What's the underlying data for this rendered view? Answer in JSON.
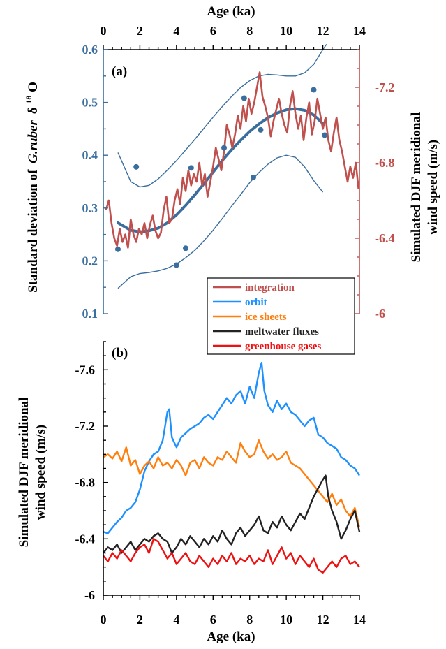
{
  "colors": {
    "sd_blue": "#3a6e9e",
    "integration": "#c0504d",
    "orbit": "#1e90ff",
    "ice_sheets": "#ff7f0e",
    "meltwater": "#222222",
    "greenhouse": "#ee1111",
    "axis": "#000000"
  },
  "chart_data": [
    {
      "panel_label": "(a)",
      "type": "line",
      "top_xlabel": "Age (ka)",
      "xlim": [
        0,
        14
      ],
      "xticks": [
        0,
        2,
        4,
        6,
        8,
        10,
        12,
        14
      ],
      "left_ylabel_plain": "Standard deviation of",
      "left_ylabel_italic": "G.ruber",
      "left_ylabel_delta": "δ",
      "left_ylabel_sup": "18",
      "left_ylabel_end": "O",
      "left_ylim": [
        0.1,
        0.6
      ],
      "left_yticks": [
        "0.6",
        "0.5",
        "0.4",
        "0.3",
        "0.2",
        "0.1"
      ],
      "right_ylabel_line1": "Simulated DJF meridional",
      "right_ylabel_line2": "wind speed (m/s)",
      "right_ylim": [
        -6,
        -7.4
      ],
      "right_yticks": [
        "-7.2",
        "-6.8",
        "-6.4",
        "-6"
      ],
      "scatter_points": {
        "x": [
          0.8,
          1.8,
          4.0,
          4.5,
          4.8,
          6.6,
          7.7,
          8.2,
          8.6,
          11.5,
          12.1
        ],
        "y": [
          0.222,
          0.378,
          0.192,
          0.224,
          0.376,
          0.414,
          0.508,
          0.358,
          0.448,
          0.524,
          0.438
        ]
      },
      "fit_curve": {
        "x": [
          0.8,
          1.5,
          2.0,
          2.5,
          3.0,
          3.5,
          4.0,
          4.5,
          5.0,
          5.5,
          6.0,
          6.5,
          7.0,
          7.5,
          8.0,
          8.5,
          9.0,
          9.5,
          10.0,
          10.5,
          11.0,
          11.5,
          12.0
        ],
        "y": [
          0.272,
          0.258,
          0.255,
          0.257,
          0.262,
          0.272,
          0.287,
          0.305,
          0.325,
          0.346,
          0.368,
          0.39,
          0.41,
          0.428,
          0.445,
          0.459,
          0.471,
          0.48,
          0.486,
          0.488,
          0.485,
          0.476,
          0.46
        ]
      },
      "ci_upper": {
        "x": [
          0.8,
          1.5,
          2.0,
          2.5,
          3.0,
          3.5,
          4.0,
          4.5,
          5.0,
          5.5,
          6.0,
          6.5,
          7.0,
          7.5,
          8.0,
          8.5,
          9.0,
          9.5,
          10.0,
          10.5,
          11.0,
          11.5,
          12.0,
          12.2
        ],
        "y": [
          0.405,
          0.35,
          0.34,
          0.343,
          0.355,
          0.372,
          0.39,
          0.41,
          0.43,
          0.451,
          0.472,
          0.492,
          0.511,
          0.528,
          0.541,
          0.55,
          0.553,
          0.552,
          0.55,
          0.55,
          0.556,
          0.572,
          0.6,
          0.61
        ]
      },
      "ci_lower": {
        "x": [
          0.8,
          1.5,
          2.0,
          2.5,
          3.0,
          3.5,
          4.0,
          4.5,
          5.0,
          5.5,
          6.0,
          6.5,
          7.0,
          7.5,
          8.0,
          8.5,
          9.0,
          9.5,
          10.0,
          10.5,
          11.0,
          11.5,
          12.0
        ],
        "y": [
          0.148,
          0.17,
          0.176,
          0.178,
          0.181,
          0.186,
          0.194,
          0.206,
          0.22,
          0.238,
          0.258,
          0.28,
          0.303,
          0.325,
          0.348,
          0.367,
          0.383,
          0.395,
          0.4,
          0.396,
          0.378,
          0.352,
          0.33
        ]
      },
      "integration_series": {
        "name": "integration",
        "x": [
          0.15,
          0.3,
          0.45,
          0.6,
          0.75,
          0.9,
          1.05,
          1.2,
          1.35,
          1.5,
          1.65,
          1.8,
          1.95,
          2.1,
          2.25,
          2.4,
          2.55,
          2.7,
          2.85,
          3.0,
          3.15,
          3.3,
          3.45,
          3.6,
          3.75,
          3.9,
          4.05,
          4.2,
          4.35,
          4.5,
          4.65,
          4.8,
          4.95,
          5.1,
          5.25,
          5.4,
          5.55,
          5.7,
          5.85,
          6.0,
          6.15,
          6.3,
          6.45,
          6.6,
          6.75,
          6.9,
          7.05,
          7.2,
          7.35,
          7.5,
          7.65,
          7.8,
          7.95,
          8.1,
          8.25,
          8.4,
          8.55,
          8.7,
          8.85,
          9.0,
          9.15,
          9.3,
          9.45,
          9.6,
          9.75,
          9.9,
          10.05,
          10.2,
          10.35,
          10.5,
          10.65,
          10.8,
          10.95,
          11.1,
          11.25,
          11.4,
          11.55,
          11.7,
          11.85,
          12.0,
          12.15,
          12.3,
          12.45,
          12.6,
          12.75,
          12.9,
          13.05,
          13.2,
          13.35,
          13.5,
          13.65,
          13.8,
          13.95
        ],
        "y": [
          -6.55,
          -6.6,
          -6.48,
          -6.4,
          -6.36,
          -6.45,
          -6.38,
          -6.42,
          -6.35,
          -6.5,
          -6.42,
          -6.38,
          -6.45,
          -6.42,
          -6.48,
          -6.4,
          -6.47,
          -6.52,
          -6.44,
          -6.4,
          -6.43,
          -6.55,
          -6.62,
          -6.48,
          -6.5,
          -6.6,
          -6.66,
          -6.58,
          -6.72,
          -6.65,
          -6.76,
          -6.68,
          -6.74,
          -6.7,
          -6.8,
          -6.68,
          -6.74,
          -6.62,
          -6.7,
          -6.78,
          -6.88,
          -6.82,
          -6.76,
          -6.86,
          -7.0,
          -6.95,
          -6.88,
          -6.95,
          -7.05,
          -6.98,
          -7.1,
          -7.02,
          -7.14,
          -7.06,
          -7.12,
          -7.2,
          -7.28,
          -7.15,
          -7.1,
          -7.04,
          -6.94,
          -7.02,
          -7.08,
          -7.14,
          -7.06,
          -7.0,
          -6.96,
          -7.1,
          -7.18,
          -7.06,
          -6.98,
          -7.05,
          -6.92,
          -7.04,
          -7.12,
          -6.95,
          -7.02,
          -7.14,
          -7.06,
          -6.98,
          -7.04,
          -6.92,
          -6.86,
          -6.96,
          -7.04,
          -6.92,
          -6.86,
          -6.78,
          -6.7,
          -6.78,
          -6.72,
          -6.8,
          -6.66
        ]
      }
    },
    {
      "panel_label": "(b)",
      "type": "line",
      "xlabel": "Age (ka)",
      "xlim": [
        0,
        14
      ],
      "xticks": [
        0,
        2,
        4,
        6,
        8,
        10,
        12,
        14
      ],
      "ylabel_line1": "Simulated DJF meridional",
      "ylabel_line2": "wind speed (m/s)",
      "ylim": [
        -6,
        -7.8
      ],
      "yticks": [
        "-7.6",
        "-7.2",
        "-6.8",
        "-6.4",
        "-6"
      ],
      "legend": [
        "integration",
        "orbit",
        "ice sheets",
        "meltwater fluxes",
        "greenhouse gases"
      ],
      "series": [
        {
          "name": "orbit",
          "x": [
            0.0,
            0.25,
            0.5,
            0.75,
            1.0,
            1.25,
            1.5,
            1.75,
            2.0,
            2.25,
            2.5,
            2.75,
            3.0,
            3.25,
            3.5,
            3.6,
            3.75,
            4.0,
            4.25,
            4.5,
            4.75,
            5.0,
            5.25,
            5.5,
            5.75,
            6.0,
            6.25,
            6.5,
            6.75,
            7.0,
            7.25,
            7.5,
            7.75,
            8.0,
            8.25,
            8.5,
            8.65,
            8.8,
            9.0,
            9.25,
            9.5,
            9.75,
            10.0,
            10.25,
            10.5,
            10.75,
            11.0,
            11.25,
            11.5,
            11.75,
            12.0,
            12.25,
            12.5,
            12.75,
            13.0,
            13.25,
            13.5,
            13.75,
            14.0
          ],
          "values": [
            -6.45,
            -6.44,
            -6.48,
            -6.52,
            -6.55,
            -6.6,
            -6.62,
            -6.66,
            -6.75,
            -6.88,
            -6.95,
            -7.0,
            -7.02,
            -7.1,
            -7.3,
            -7.32,
            -7.12,
            -7.05,
            -7.12,
            -7.15,
            -7.18,
            -7.2,
            -7.22,
            -7.26,
            -7.28,
            -7.25,
            -7.3,
            -7.35,
            -7.4,
            -7.36,
            -7.42,
            -7.45,
            -7.36,
            -7.48,
            -7.4,
            -7.58,
            -7.65,
            -7.45,
            -7.35,
            -7.3,
            -7.38,
            -7.32,
            -7.36,
            -7.3,
            -7.28,
            -7.24,
            -7.2,
            -7.24,
            -7.26,
            -7.14,
            -7.12,
            -7.08,
            -7.06,
            -7.04,
            -6.98,
            -6.96,
            -6.92,
            -6.9,
            -6.85
          ]
        },
        {
          "name": "ice sheets",
          "x": [
            0.0,
            0.25,
            0.5,
            0.75,
            1.0,
            1.25,
            1.5,
            1.75,
            2.0,
            2.25,
            2.5,
            2.75,
            3.0,
            3.25,
            3.5,
            3.75,
            4.0,
            4.25,
            4.5,
            4.75,
            5.0,
            5.25,
            5.5,
            5.75,
            6.0,
            6.25,
            6.5,
            6.75,
            7.0,
            7.25,
            7.5,
            7.75,
            8.0,
            8.25,
            8.5,
            8.75,
            9.0,
            9.25,
            9.5,
            9.75,
            10.0,
            10.25,
            10.5,
            10.75,
            11.0,
            11.25,
            11.5,
            11.75,
            12.0,
            12.25,
            12.5,
            12.75,
            13.0,
            13.25,
            13.5,
            13.75,
            14.0
          ],
          "values": [
            -6.98,
            -7.0,
            -6.97,
            -7.02,
            -6.95,
            -7.05,
            -6.92,
            -6.96,
            -6.86,
            -6.92,
            -6.95,
            -6.9,
            -6.98,
            -6.92,
            -6.94,
            -6.9,
            -6.96,
            -6.92,
            -6.85,
            -6.94,
            -6.96,
            -6.9,
            -6.98,
            -6.94,
            -6.92,
            -6.98,
            -6.96,
            -7.02,
            -6.98,
            -6.94,
            -7.08,
            -7.02,
            -6.98,
            -7.0,
            -7.1,
            -7.02,
            -6.97,
            -7.0,
            -6.96,
            -6.98,
            -7.02,
            -6.94,
            -6.92,
            -6.9,
            -6.86,
            -6.82,
            -6.78,
            -6.74,
            -6.7,
            -6.66,
            -6.72,
            -6.64,
            -6.68,
            -6.6,
            -6.56,
            -6.62,
            -6.48
          ]
        },
        {
          "name": "meltwater fluxes",
          "x": [
            0.0,
            0.25,
            0.5,
            0.75,
            1.0,
            1.25,
            1.5,
            1.75,
            2.0,
            2.25,
            2.5,
            2.75,
            3.0,
            3.25,
            3.5,
            3.75,
            4.0,
            4.25,
            4.5,
            4.75,
            5.0,
            5.25,
            5.5,
            5.75,
            6.0,
            6.25,
            6.5,
            6.75,
            7.0,
            7.25,
            7.5,
            7.75,
            8.0,
            8.25,
            8.5,
            8.75,
            9.0,
            9.25,
            9.5,
            9.75,
            10.0,
            10.25,
            10.5,
            10.75,
            11.0,
            11.25,
            11.5,
            11.75,
            12.0,
            12.15,
            12.3,
            12.5,
            12.75,
            13.0,
            13.25,
            13.5,
            13.75,
            14.0
          ],
          "values": [
            -6.3,
            -6.34,
            -6.32,
            -6.36,
            -6.3,
            -6.34,
            -6.38,
            -6.32,
            -6.36,
            -6.4,
            -6.38,
            -6.42,
            -6.44,
            -6.4,
            -6.38,
            -6.3,
            -6.34,
            -6.4,
            -6.36,
            -6.42,
            -6.38,
            -6.34,
            -6.4,
            -6.36,
            -6.42,
            -6.38,
            -6.46,
            -6.4,
            -6.36,
            -6.44,
            -6.48,
            -6.42,
            -6.46,
            -6.5,
            -6.56,
            -6.46,
            -6.44,
            -6.52,
            -6.48,
            -6.56,
            -6.5,
            -6.46,
            -6.52,
            -6.58,
            -6.54,
            -6.62,
            -6.7,
            -6.76,
            -6.82,
            -6.85,
            -6.7,
            -6.6,
            -6.52,
            -6.4,
            -6.46,
            -6.54,
            -6.6,
            -6.45
          ]
        },
        {
          "name": "greenhouse gases",
          "x": [
            0.0,
            0.25,
            0.5,
            0.75,
            1.0,
            1.25,
            1.5,
            1.75,
            2.0,
            2.25,
            2.5,
            2.75,
            3.0,
            3.25,
            3.5,
            3.75,
            4.0,
            4.25,
            4.5,
            4.75,
            5.0,
            5.25,
            5.5,
            5.75,
            6.0,
            6.25,
            6.5,
            6.75,
            7.0,
            7.25,
            7.5,
            7.75,
            8.0,
            8.25,
            8.5,
            8.75,
            9.0,
            9.25,
            9.5,
            9.75,
            10.0,
            10.25,
            10.5,
            10.75,
            11.0,
            11.25,
            11.5,
            11.75,
            12.0,
            12.25,
            12.5,
            12.75,
            13.0,
            13.25,
            13.5,
            13.75,
            14.0
          ],
          "values": [
            -6.28,
            -6.24,
            -6.3,
            -6.26,
            -6.32,
            -6.28,
            -6.24,
            -6.3,
            -6.34,
            -6.36,
            -6.3,
            -6.4,
            -6.38,
            -6.32,
            -6.26,
            -6.3,
            -6.22,
            -6.26,
            -6.3,
            -6.24,
            -6.22,
            -6.28,
            -6.24,
            -6.2,
            -6.26,
            -6.22,
            -6.28,
            -6.24,
            -6.3,
            -6.22,
            -6.26,
            -6.24,
            -6.28,
            -6.22,
            -6.26,
            -6.24,
            -6.32,
            -6.22,
            -6.28,
            -6.34,
            -6.26,
            -6.3,
            -6.22,
            -6.28,
            -6.24,
            -6.2,
            -6.26,
            -6.18,
            -6.16,
            -6.2,
            -6.24,
            -6.2,
            -6.26,
            -6.28,
            -6.22,
            -6.24,
            -6.2
          ]
        }
      ]
    }
  ]
}
